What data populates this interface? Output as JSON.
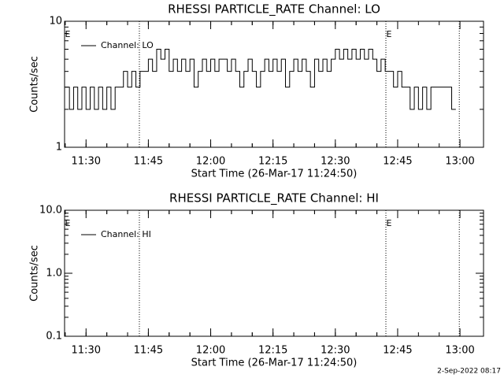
{
  "chart_data": [
    {
      "type": "line",
      "title": "RHESSI PARTICLE_RATE Channel: LO",
      "xlabel": "Start Time (26-Mar-17 11:24:50)",
      "ylabel": "Counts/sec",
      "log_y": true,
      "ylim": [
        1,
        10
      ],
      "yticks": [
        1,
        10
      ],
      "xlim": [
        "11:24:50",
        "13:05:40"
      ],
      "xticks": [
        "11:30",
        "11:45",
        "12:00",
        "12:15",
        "12:30",
        "12:45",
        "13:00"
      ],
      "vlines": [
        "11:42:50",
        "12:42:10",
        "12:59:50"
      ],
      "annotations": [
        {
          "text": "E",
          "x": "11:24:50"
        },
        {
          "text": "E",
          "x": "12:42:10"
        }
      ],
      "legend": "upper left",
      "step": true,
      "x": [
        "11:25",
        "11:26",
        "11:27",
        "11:28",
        "11:29",
        "11:30",
        "11:31",
        "11:32",
        "11:33",
        "11:34",
        "11:35",
        "11:36",
        "11:37",
        "11:38",
        "11:39",
        "11:40",
        "11:41",
        "11:42",
        "11:43",
        "11:44",
        "11:45",
        "11:46",
        "11:47",
        "11:48",
        "11:49",
        "11:50",
        "11:51",
        "11:52",
        "11:53",
        "11:54",
        "11:55",
        "11:56",
        "11:57",
        "11:58",
        "11:59",
        "12:00",
        "12:01",
        "12:02",
        "12:03",
        "12:04",
        "12:05",
        "12:06",
        "12:07",
        "12:08",
        "12:09",
        "12:10",
        "12:11",
        "12:12",
        "12:13",
        "12:14",
        "12:15",
        "12:16",
        "12:17",
        "12:18",
        "12:19",
        "12:20",
        "12:21",
        "12:22",
        "12:23",
        "12:24",
        "12:25",
        "12:26",
        "12:27",
        "12:28",
        "12:29",
        "12:30",
        "12:31",
        "12:32",
        "12:33",
        "12:34",
        "12:35",
        "12:36",
        "12:37",
        "12:38",
        "12:39",
        "12:40",
        "12:41",
        "12:42",
        "12:43",
        "12:44",
        "12:45",
        "12:46",
        "12:47",
        "12:48",
        "12:49",
        "12:50",
        "12:51",
        "12:52",
        "12:53",
        "12:54",
        "12:55",
        "12:56",
        "12:57",
        "12:58",
        "12:59"
      ],
      "series": [
        {
          "name": "Channel: LO",
          "color": "#000000",
          "values": [
            3,
            2,
            3,
            2,
            3,
            2,
            3,
            2,
            3,
            2,
            3,
            2,
            3,
            3,
            4,
            3,
            4,
            3,
            4,
            4,
            5,
            4,
            6,
            5,
            6,
            4,
            5,
            4,
            5,
            4,
            5,
            3,
            4,
            5,
            4,
            5,
            4,
            5,
            5,
            4,
            5,
            4,
            3,
            4,
            5,
            4,
            3,
            4,
            5,
            4,
            5,
            4,
            5,
            3,
            4,
            5,
            4,
            5,
            4,
            3,
            5,
            4,
            5,
            4,
            5,
            6,
            5,
            6,
            5,
            6,
            5,
            6,
            5,
            6,
            5,
            4,
            5,
            4,
            4,
            3,
            4,
            3,
            3,
            2,
            3,
            2,
            3,
            2,
            3,
            3,
            3,
            3,
            3,
            2,
            2
          ]
        }
      ]
    },
    {
      "type": "line",
      "title": "RHESSI PARTICLE_RATE Channel: HI",
      "xlabel": "Start Time (26-Mar-17 11:24:50)",
      "ylabel": "Counts/sec",
      "log_y": true,
      "ylim": [
        0.1,
        10
      ],
      "yticks": [
        0.1,
        {
          "value": 1,
          "label": "1.0"
        },
        {
          "value": 10,
          "label": "10.0"
        }
      ],
      "xlim": [
        "11:24:50",
        "13:05:40"
      ],
      "xticks": [
        "11:30",
        "11:45",
        "12:00",
        "12:15",
        "12:30",
        "12:45",
        "13:00"
      ],
      "vlines": [
        "11:42:50",
        "12:42:10",
        "12:59:50"
      ],
      "annotations": [
        {
          "text": "E",
          "x": "11:24:50"
        },
        {
          "text": "E",
          "x": "12:42:10"
        }
      ],
      "legend": "upper left",
      "step": true,
      "x": [],
      "series": [
        {
          "name": "Channel: HI",
          "color": "#000000",
          "values": []
        }
      ]
    }
  ],
  "footer": "2-Sep-2022 08:17"
}
